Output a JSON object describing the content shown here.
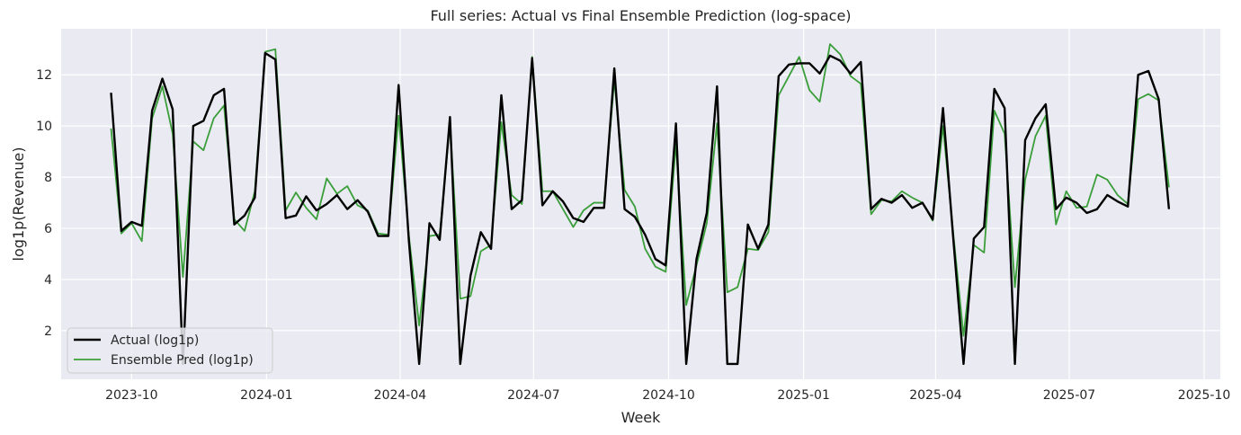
{
  "chart_data": {
    "type": "line",
    "title": "Full series: Actual vs Final Ensemble Prediction (log-space)",
    "xlabel": "Week",
    "ylabel": "log1p(Revenue)",
    "x_start": "2023-09-17",
    "x_step_days": 7,
    "xlim": [
      "2023-08-14",
      "2025-10-12"
    ],
    "ylim": [
      0.1,
      13.8
    ],
    "x_ticks": [
      {
        "date": "2023-10-01",
        "label": "2023-10"
      },
      {
        "date": "2024-01-01",
        "label": "2024-01"
      },
      {
        "date": "2024-04-01",
        "label": "2024-04"
      },
      {
        "date": "2024-07-01",
        "label": "2024-07"
      },
      {
        "date": "2024-10-01",
        "label": "2024-10"
      },
      {
        "date": "2025-01-01",
        "label": "2025-01"
      },
      {
        "date": "2025-04-01",
        "label": "2025-04"
      },
      {
        "date": "2025-07-01",
        "label": "2025-07"
      },
      {
        "date": "2025-10-01",
        "label": "2025-10"
      }
    ],
    "y_ticks": [
      2,
      4,
      6,
      8,
      10,
      12
    ],
    "grid": true,
    "legend_position": "lower-left",
    "series": [
      {
        "name": "Actual (log1p)",
        "color": "#000000",
        "values": [
          11.3,
          5.9,
          6.25,
          6.1,
          10.6,
          11.85,
          10.65,
          0.7,
          10.0,
          10.2,
          11.2,
          11.45,
          6.15,
          6.5,
          7.2,
          12.85,
          12.6,
          6.4,
          6.5,
          7.25,
          6.7,
          6.95,
          7.3,
          6.75,
          7.1,
          6.65,
          5.7,
          5.7,
          11.6,
          5.5,
          0.7,
          6.2,
          5.55,
          10.35,
          0.7,
          4.15,
          5.85,
          5.2,
          11.2,
          6.75,
          7.1,
          12.65,
          6.9,
          7.45,
          7.05,
          6.4,
          6.25,
          6.8,
          6.8,
          12.25,
          6.75,
          6.45,
          5.75,
          4.8,
          4.55,
          10.1,
          0.7,
          4.8,
          6.6,
          11.55,
          0.7,
          0.7,
          6.15,
          5.2,
          6.15,
          11.95,
          12.4,
          12.45,
          12.45,
          12.05,
          12.75,
          12.55,
          12.05,
          12.5,
          6.75,
          7.15,
          7.0,
          7.3,
          6.8,
          7.0,
          6.35,
          10.7,
          5.6,
          0.7,
          5.6,
          6.05,
          11.45,
          10.7,
          0.7,
          9.45,
          10.3,
          10.85,
          6.75,
          7.2,
          7.0,
          6.6,
          6.75,
          7.3,
          7.05,
          6.85,
          12.0,
          12.15,
          11.05,
          6.75
        ]
      },
      {
        "name": "Ensemble Pred (log1p)",
        "color": "#3a9e3a",
        "values": [
          9.9,
          5.8,
          6.2,
          5.5,
          10.3,
          11.55,
          9.7,
          4.1,
          9.4,
          9.05,
          10.3,
          10.8,
          6.35,
          5.9,
          7.45,
          12.9,
          13.0,
          6.7,
          7.4,
          6.8,
          6.35,
          7.95,
          7.35,
          7.65,
          6.9,
          6.7,
          5.8,
          5.75,
          10.4,
          5.7,
          2.2,
          5.7,
          5.75,
          10.1,
          3.25,
          3.35,
          5.1,
          5.35,
          10.15,
          7.3,
          6.95,
          12.7,
          7.45,
          7.45,
          6.75,
          6.05,
          6.7,
          7.0,
          7.0,
          11.8,
          7.5,
          6.85,
          5.2,
          4.5,
          4.3,
          9.3,
          3.0,
          4.55,
          6.2,
          10.1,
          3.5,
          3.7,
          5.2,
          5.15,
          5.85,
          11.2,
          11.95,
          12.7,
          11.4,
          10.95,
          13.2,
          12.8,
          11.95,
          11.65,
          6.55,
          7.1,
          7.05,
          7.45,
          7.2,
          7.0,
          6.3,
          10.0,
          5.8,
          1.8,
          5.35,
          5.05,
          10.6,
          9.7,
          3.7,
          7.9,
          9.6,
          10.4,
          6.15,
          7.45,
          6.8,
          6.85,
          8.1,
          7.9,
          7.3,
          6.95,
          11.05,
          11.25,
          11.0,
          7.6
        ]
      }
    ]
  }
}
